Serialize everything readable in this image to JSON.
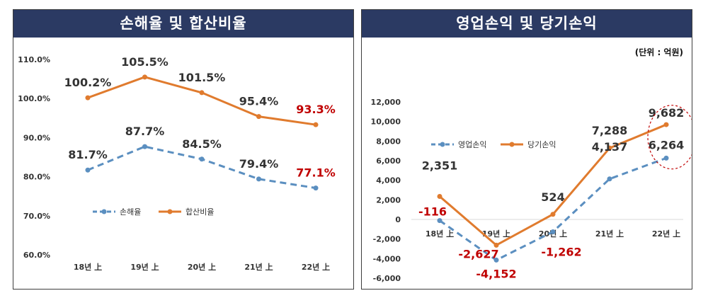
{
  "chart_data": [
    {
      "type": "line",
      "title": "손해율 및 합산비율",
      "categories": [
        "18년 上",
        "19년 上",
        "20년 上",
        "21년 上",
        "22년 上"
      ],
      "ylim": [
        60,
        110
      ],
      "yticks": [
        "60.0%",
        "70.0%",
        "80.0%",
        "90.0%",
        "100.0%",
        "110.0%"
      ],
      "ytick_values": [
        60,
        70,
        80,
        90,
        100,
        110
      ],
      "grid": false,
      "legend": "center",
      "series": [
        {
          "name": "손해율",
          "values": [
            81.7,
            87.7,
            84.5,
            79.4,
            77.1
          ],
          "labels": [
            "81.7%",
            "87.7%",
            "84.5%",
            "79.4%",
            "77.1%"
          ],
          "color": "#5b8fc0",
          "dash": true
        },
        {
          "name": "합산비율",
          "values": [
            100.2,
            105.5,
            101.5,
            95.4,
            93.3
          ],
          "labels": [
            "100.2%",
            "105.5%",
            "101.5%",
            "95.4%",
            "93.3%"
          ],
          "color": "#e07b2e",
          "dash": false
        }
      ],
      "highlight_color": "#c00000"
    },
    {
      "type": "line",
      "title": "영업손익 및 당기손익",
      "unit": "(단위 : 억원)",
      "categories": [
        "18년 上",
        "19년 上",
        "20년 上",
        "21년 上",
        "22년 上"
      ],
      "ylim": [
        -6000,
        12000
      ],
      "yticks": [
        "-6,000",
        "-4,000",
        "-2,000",
        "0",
        "2,000",
        "4,000",
        "6,000",
        "8,000",
        "10,000",
        "12,000"
      ],
      "ytick_values": [
        -6000,
        -4000,
        -2000,
        0,
        2000,
        4000,
        6000,
        8000,
        10000,
        12000
      ],
      "grid": false,
      "legend": "top-left",
      "series": [
        {
          "name": "영업손익",
          "values": [
            -116,
            -4152,
            -1262,
            4137,
            6264
          ],
          "labels": [
            "-116",
            "-4,152",
            "-1,262",
            "4,137",
            "6,264"
          ],
          "color": "#5b8fc0",
          "dash": true
        },
        {
          "name": "당기손익",
          "values": [
            2351,
            -2627,
            524,
            7288,
            9682
          ],
          "labels": [
            "2,351",
            "-2,627",
            "524",
            "7,288",
            "9,682"
          ],
          "color": "#e07b2e",
          "dash": false
        }
      ],
      "highlight_color": "#c00000"
    }
  ]
}
